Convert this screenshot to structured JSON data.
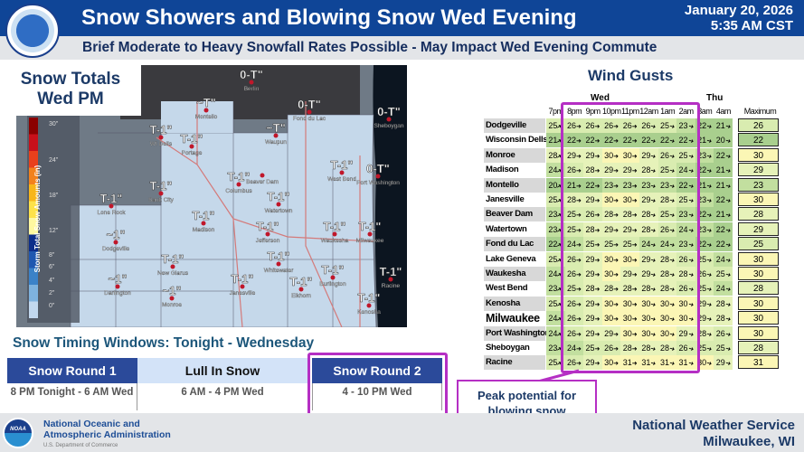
{
  "header": {
    "title": "Snow Showers and Blowing Snow Wed Evening",
    "subtitle": "Brief Moderate to Heavy Snowfall Rates Possible - May Impact Wed Evening Commute",
    "date": "January 20, 2026",
    "time": "5:35 AM CST",
    "logo_text": "NATIONAL WEATHER SERVICE"
  },
  "map": {
    "title_line1": "Snow Totals",
    "title_line2": "Wed PM",
    "legend_title": "Storm Total Snow Amounts (in)",
    "legend_ticks": [
      "30\"",
      "24\"",
      "18\"",
      "12\"",
      "8\"",
      "6\"",
      "4\"",
      "2\"",
      "0\""
    ],
    "legend_colors": [
      "#8b0000",
      "#c8101a",
      "#e8401c",
      "#f2811c",
      "#f8b61a",
      "#fde24a",
      "#fef8a0",
      "#0c2d8a",
      "#1f57b0",
      "#3b82c8",
      "#7eb2de",
      "#c2d8ee"
    ],
    "locations": [
      {
        "city": "Montello",
        "amount": "~T\""
      },
      {
        "city": "Berlin",
        "amount": "0-T\""
      },
      {
        "city": "WI Dells",
        "amount": "T-1\""
      },
      {
        "city": "Portage",
        "amount": "T-1\""
      },
      {
        "city": "Fond du Lac",
        "amount": "0-T\""
      },
      {
        "city": "Waupun",
        "amount": "~T\""
      },
      {
        "city": "Sheboygan",
        "amount": "0-T\""
      },
      {
        "city": "Beaver Dam",
        "amount": ""
      },
      {
        "city": "Columbus",
        "amount": "T-1\""
      },
      {
        "city": "West Bend",
        "amount": "T-1\""
      },
      {
        "city": "Port Washington",
        "amount": "0-T\""
      },
      {
        "city": "Sauk City",
        "amount": "T-1\""
      },
      {
        "city": "Lone Rock",
        "amount": "T-1\""
      },
      {
        "city": "Madison",
        "amount": "T-1\""
      },
      {
        "city": "Watertown",
        "amount": "T-1\""
      },
      {
        "city": "Jefferson",
        "amount": "T-1\""
      },
      {
        "city": "Waukesha",
        "amount": "T-1\""
      },
      {
        "city": "Milwaukee",
        "amount": "T-1\""
      },
      {
        "city": "Dodgeville",
        "amount": "~1\""
      },
      {
        "city": "New Glarus",
        "amount": "T-1\""
      },
      {
        "city": "Whitewater",
        "amount": "T-1\""
      },
      {
        "city": "Darlington",
        "amount": "~1\""
      },
      {
        "city": "Monroe",
        "amount": "~1\""
      },
      {
        "city": "Janesville",
        "amount": "T-1\""
      },
      {
        "city": "Elkhorn",
        "amount": "T-1\""
      },
      {
        "city": "Burlington",
        "amount": "T-1\""
      },
      {
        "city": "Racine",
        "amount": "T-1\""
      },
      {
        "city": "Kenosha",
        "amount": "T-1\""
      }
    ]
  },
  "wind": {
    "title": "Wind Gusts",
    "day1": "Wed",
    "day2": "Thu",
    "max_label": "Maximum",
    "times": [
      "7pm",
      "8pm",
      "9pm",
      "10pm",
      "11pm",
      "12am",
      "1am",
      "2am",
      "3am",
      "4am"
    ],
    "rows": [
      {
        "name": "Dodgeville",
        "values": [
          25,
          26,
          26,
          26,
          26,
          26,
          25,
          23,
          22,
          21
        ],
        "max": 26
      },
      {
        "name": "Wisconsin Dells",
        "values": [
          21,
          22,
          22,
          22,
          22,
          22,
          22,
          22,
          21,
          20
        ],
        "max": 22
      },
      {
        "name": "Monroe",
        "values": [
          28,
          29,
          29,
          30,
          30,
          29,
          26,
          25,
          23,
          22
        ],
        "max": 30
      },
      {
        "name": "Madison",
        "values": [
          24,
          26,
          28,
          29,
          29,
          28,
          25,
          24,
          22,
          21
        ],
        "max": 29
      },
      {
        "name": "Montello",
        "values": [
          20,
          21,
          22,
          23,
          23,
          23,
          23,
          22,
          21,
          21
        ],
        "max": 23
      },
      {
        "name": "Janesville",
        "values": [
          25,
          28,
          29,
          30,
          30,
          29,
          28,
          25,
          23,
          22
        ],
        "max": 30
      },
      {
        "name": "Beaver Dam",
        "values": [
          23,
          25,
          26,
          28,
          28,
          28,
          25,
          23,
          22,
          21
        ],
        "max": 28
      },
      {
        "name": "Watertown",
        "values": [
          23,
          25,
          28,
          29,
          29,
          28,
          26,
          24,
          23,
          22
        ],
        "max": 29
      },
      {
        "name": "Fond du Lac",
        "values": [
          22,
          24,
          25,
          25,
          25,
          24,
          24,
          23,
          22,
          22
        ],
        "max": 25
      },
      {
        "name": "Lake Geneva",
        "values": [
          25,
          26,
          29,
          30,
          30,
          29,
          28,
          26,
          25,
          24
        ],
        "max": 30
      },
      {
        "name": "Waukesha",
        "values": [
          24,
          26,
          29,
          30,
          29,
          29,
          28,
          28,
          26,
          25
        ],
        "max": 30
      },
      {
        "name": "West Bend",
        "values": [
          23,
          25,
          28,
          28,
          28,
          28,
          28,
          26,
          25,
          24
        ],
        "max": 28
      },
      {
        "name": "Kenosha",
        "values": [
          25,
          26,
          29,
          30,
          30,
          30,
          30,
          30,
          29,
          28
        ],
        "max": 30
      },
      {
        "name": "Milwaukee",
        "values": [
          24,
          26,
          29,
          30,
          30,
          30,
          30,
          30,
          29,
          28
        ],
        "max": 30
      },
      {
        "name": "Port Washington",
        "values": [
          24,
          26,
          29,
          29,
          30,
          30,
          30,
          29,
          28,
          26
        ],
        "max": 30
      },
      {
        "name": "Sheboygan",
        "values": [
          23,
          24,
          25,
          26,
          28,
          28,
          28,
          26,
          25,
          25
        ],
        "max": 28
      },
      {
        "name": "Racine",
        "values": [
          25,
          26,
          29,
          30,
          31,
          31,
          31,
          31,
          30,
          29
        ],
        "max": 31
      }
    ]
  },
  "callout": {
    "text": "Peak potential for blowing snow"
  },
  "timing": {
    "title": "Snow Timing Windows: Tonight - Wednesday",
    "cols": [
      {
        "header": "Snow Round 1",
        "body": "8 PM Tonight - 6 AM Wed"
      },
      {
        "header": "Lull In Snow",
        "body": "6 AM - 4 PM Wed"
      },
      {
        "header": "Snow Round 2",
        "body": "4 - 10 PM Wed"
      }
    ]
  },
  "footer": {
    "noaa_line1": "National Oceanic and",
    "noaa_line2": "Atmospheric Administration",
    "noaa_dept": "U.S. Department of Commerce",
    "noaa_logo_text": "NOAA",
    "nws_line1": "National Weather Service",
    "nws_line2": "Milwaukee, WI"
  }
}
